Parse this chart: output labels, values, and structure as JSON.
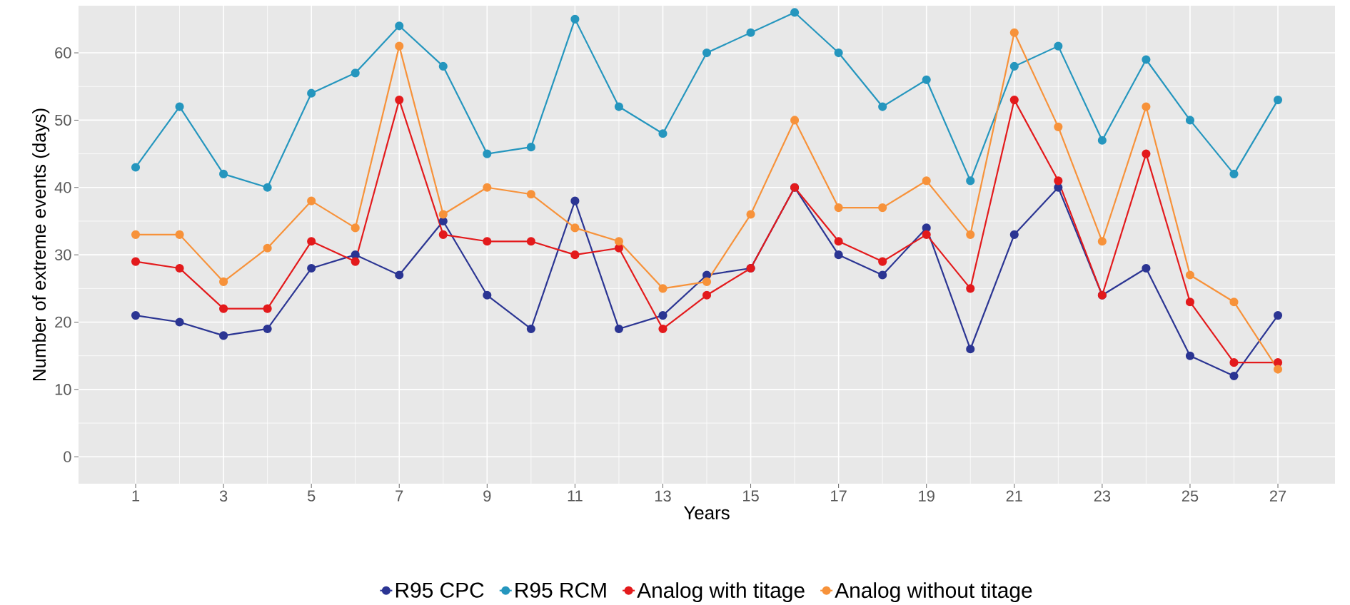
{
  "chart_data": {
    "type": "line",
    "xlabel": "Years",
    "ylabel": "Number of extreme events (days)",
    "x": [
      1,
      2,
      3,
      4,
      5,
      6,
      7,
      8,
      9,
      10,
      11,
      12,
      13,
      14,
      15,
      16,
      17,
      18,
      19,
      20,
      21,
      22,
      23,
      24,
      25,
      26,
      27
    ],
    "series": [
      {
        "name": "R95 CPC",
        "color": "#2b3593",
        "values": [
          21,
          20,
          18,
          19,
          28,
          30,
          27,
          35,
          24,
          19,
          38,
          19,
          21,
          27,
          28,
          40,
          30,
          27,
          34,
          16,
          33,
          40,
          24,
          28,
          15,
          12,
          21
        ]
      },
      {
        "name": "R95 RCM",
        "color": "#2596be",
        "values": [
          43,
          52,
          42,
          40,
          54,
          57,
          64,
          58,
          45,
          46,
          65,
          52,
          48,
          60,
          63,
          66,
          60,
          52,
          56,
          41,
          58,
          61,
          47,
          59,
          50,
          42,
          53
        ]
      },
      {
        "name": "Analog with titage",
        "color": "#e31a1c",
        "values": [
          29,
          28,
          22,
          22,
          32,
          29,
          53,
          33,
          32,
          32,
          30,
          31,
          19,
          24,
          28,
          40,
          32,
          29,
          33,
          25,
          53,
          41,
          24,
          45,
          23,
          14,
          14
        ]
      },
      {
        "name": "Analog without titage",
        "color": "#f7923a",
        "values": [
          33,
          33,
          26,
          31,
          38,
          34,
          61,
          36,
          40,
          39,
          34,
          32,
          25,
          26,
          36,
          50,
          37,
          37,
          41,
          33,
          63,
          49,
          32,
          52,
          27,
          23,
          13
        ]
      }
    ],
    "xlim": [
      -0.3,
      28.3
    ],
    "ylim": [
      -4,
      67
    ],
    "xticks": [
      1,
      3,
      5,
      7,
      9,
      11,
      13,
      15,
      17,
      19,
      21,
      23,
      25,
      27
    ],
    "yticks": [
      0,
      10,
      20,
      30,
      40,
      50,
      60
    ],
    "grid": true,
    "legend": "bottom",
    "marker": "circle",
    "line_style": "solid"
  }
}
